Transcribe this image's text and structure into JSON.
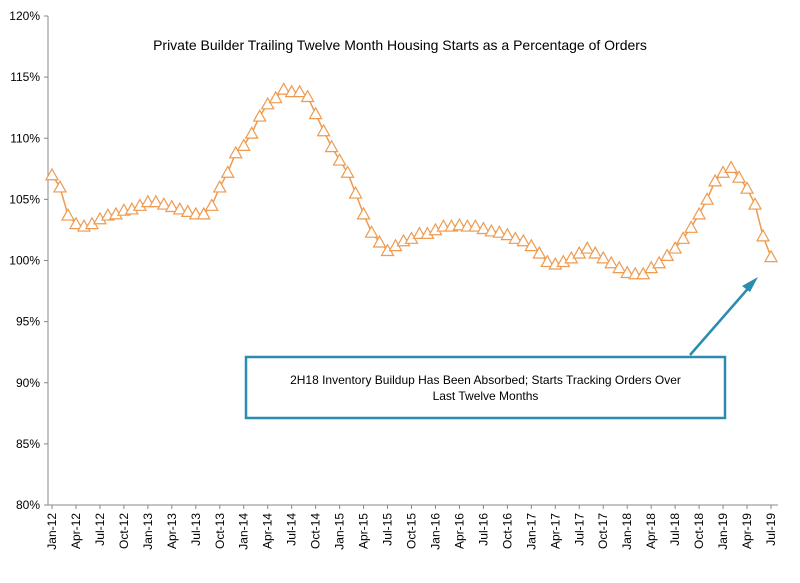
{
  "chart_data": {
    "type": "line",
    "title": "Private Builder Trailing Twelve Month Housing Starts as a Percentage of Orders",
    "annotation": [
      "2H18 Inventory  Buildup Has Been Absorbed; Starts Tracking Orders Over",
      "Last Twelve Months"
    ],
    "categories": [
      "Jan-12",
      null,
      null,
      "Apr-12",
      null,
      null,
      "Jul-12",
      null,
      null,
      "Oct-12",
      null,
      null,
      "Jan-13",
      null,
      null,
      "Apr-13",
      null,
      null,
      "Jul-13",
      null,
      null,
      "Oct-13",
      null,
      null,
      "Jan-14",
      null,
      null,
      "Apr-14",
      null,
      null,
      "Jul-14",
      null,
      null,
      "Oct-14",
      null,
      null,
      "Jan-15",
      null,
      null,
      "Apr-15",
      null,
      null,
      "Jul-15",
      null,
      null,
      "Oct-15",
      null,
      null,
      "Jan-16",
      null,
      null,
      "Apr-16",
      null,
      null,
      "Jul-16",
      null,
      null,
      "Oct-16",
      null,
      null,
      "Jan-17",
      null,
      null,
      "Apr-17",
      null,
      null,
      "Jul-17",
      null,
      null,
      "Oct-17",
      null,
      null,
      "Jan-18",
      null,
      null,
      "Apr-18",
      null,
      null,
      "Jul-18",
      null,
      null,
      "Oct-18",
      null,
      null,
      "Jan-19",
      null,
      null,
      "Apr-19",
      null,
      null,
      "Jul-19"
    ],
    "series": [
      {
        "color": "#ee9a4f",
        "values": [
          107.0,
          106.0,
          103.7,
          103.0,
          102.8,
          103.0,
          103.4,
          103.7,
          103.8,
          104.1,
          104.2,
          104.5,
          104.8,
          104.8,
          104.6,
          104.4,
          104.2,
          104.0,
          103.8,
          103.8,
          104.5,
          106.0,
          107.2,
          108.8,
          109.4,
          110.4,
          111.8,
          112.8,
          113.3,
          114.0,
          113.8,
          113.8,
          113.4,
          112.0,
          110.6,
          109.3,
          108.2,
          107.2,
          105.5,
          103.8,
          102.3,
          101.5,
          100.8,
          101.2,
          101.6,
          101.8,
          102.2,
          102.2,
          102.5,
          102.8,
          102.8,
          102.9,
          102.8,
          102.8,
          102.6,
          102.4,
          102.3,
          102.1,
          101.8,
          101.6,
          101.2,
          100.6,
          99.9,
          99.7,
          99.9,
          100.2,
          100.6,
          101.0,
          100.6,
          100.2,
          99.8,
          99.4,
          99.0,
          98.9,
          98.9,
          99.4,
          99.8,
          100.4,
          101.0,
          101.8,
          102.7,
          103.8,
          105.0,
          106.5,
          107.2,
          107.6,
          106.8,
          105.9,
          104.6,
          102.0,
          100.3
        ]
      }
    ],
    "ylim": [
      80,
      120
    ],
    "yticks": [
      {
        "value": 80,
        "label": "80%"
      },
      {
        "value": 85,
        "label": "85%"
      },
      {
        "value": 90,
        "label": "90%"
      },
      {
        "value": 95,
        "label": "95%"
      },
      {
        "value": 100,
        "label": "100%"
      },
      {
        "value": 105,
        "label": "105%"
      },
      {
        "value": 110,
        "label": "110%"
      },
      {
        "value": 115,
        "label": "115%"
      },
      {
        "value": 120,
        "label": "120%"
      }
    ]
  }
}
